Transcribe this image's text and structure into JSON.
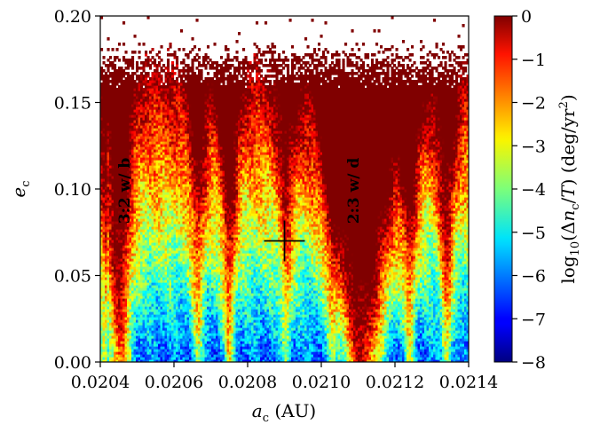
{
  "chart_data": {
    "type": "heatmap",
    "xlabel_main": "a",
    "xlabel_sub": "c",
    "xlabel_unit": " (AU)",
    "ylabel_main": "e",
    "ylabel_sub": "c",
    "colorbar_label": "log10(Δnc/T) (deg/yr2)",
    "colorbar_parts": {
      "log": "log",
      "log_sub": "10",
      "open": "(Δ",
      "n": "n",
      "n_sub": "c",
      "slash": "/",
      "T": "T",
      "close": ") (deg/yr",
      "sq": "2",
      "end": ")"
    },
    "xlim": [
      0.0204,
      0.0214
    ],
    "ylim": [
      0.0,
      0.2
    ],
    "clim": [
      -8,
      0
    ],
    "colormap": "jet",
    "x_ticks": [
      0.0204,
      0.0206,
      0.0208,
      0.021,
      0.0212,
      0.0214
    ],
    "x_tick_labels": [
      "0.0204",
      "0.0206",
      "0.0208",
      "0.0210",
      "0.0212",
      "0.0214"
    ],
    "y_ticks": [
      0.0,
      0.05,
      0.1,
      0.15,
      0.2
    ],
    "y_tick_labels": [
      "0.00",
      "0.05",
      "0.10",
      "0.15",
      "0.20"
    ],
    "colorbar_ticks": [
      0,
      -1,
      -2,
      -3,
      -4,
      -5,
      -6,
      -7,
      -8
    ],
    "colorbar_tick_labels": [
      "0",
      "−1",
      "−2",
      "−3",
      "−4",
      "−5",
      "−6",
      "−7",
      "−8"
    ],
    "annotations": [
      {
        "text": "3:2 w/ b",
        "x": 0.02045,
        "y": 0.1
      },
      {
        "text": "2:3 w/ d",
        "x": 0.02111,
        "y": 0.1
      }
    ],
    "marker": {
      "symbol": "plus",
      "x": 0.0209,
      "y": 0.07,
      "color": "#000000"
    }
  }
}
